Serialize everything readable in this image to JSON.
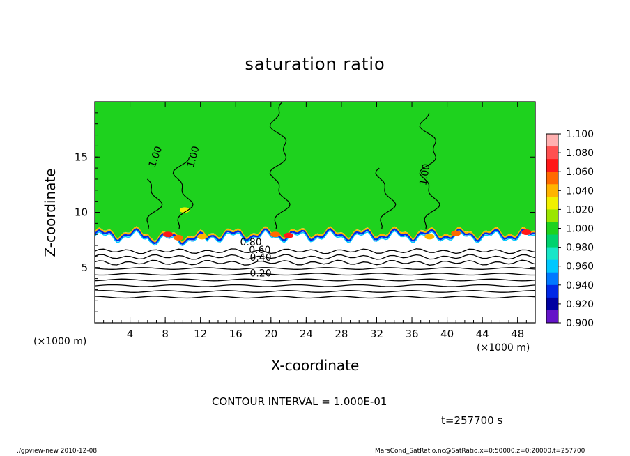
{
  "chart_data": {
    "type": "heatmap",
    "title": "saturation ratio",
    "xlabel": "X-coordinate",
    "ylabel": "Z-coordinate",
    "x_unit": "(×1000 m)",
    "z_unit": "(×1000 m)",
    "xlim": [
      0,
      50
    ],
    "ylim": [
      0,
      20
    ],
    "x_ticks": [
      "4",
      "8",
      "12",
      "16",
      "20",
      "24",
      "28",
      "32",
      "36",
      "40",
      "44",
      "48"
    ],
    "y_ticks": [
      "5",
      "10",
      "15"
    ],
    "contour_interval": "CONTOUR INTERVAL = 1.000E-01",
    "contour_labels": [
      "1.00",
      "1.00",
      "1.00",
      "0.80",
      "0.60",
      "0.40",
      "0.20"
    ],
    "colorbar": {
      "labels": [
        "1.100",
        "1.080",
        "1.060",
        "1.040",
        "1.020",
        "1.000",
        "0.980",
        "0.960",
        "0.940",
        "0.920",
        "0.900"
      ],
      "colors": [
        "#ffb0b0",
        "#ff5050",
        "#ff1818",
        "#ff6a00",
        "#ffb400",
        "#f0f000",
        "#9be600",
        "#1ed21e",
        "#00d26e",
        "#18e6c8",
        "#00c8ff",
        "#0078ff",
        "#0028e6",
        "#0000a0",
        "#6414c8"
      ],
      "range": [
        0.9,
        1.1
      ]
    },
    "field": {
      "background_value": 1.0,
      "cloud_base_z": 8.2,
      "subsaturated_layer_top_z": 7.0,
      "contour_levels_below": [
        0.9,
        0.8,
        0.7,
        0.6,
        0.5,
        0.4,
        0.3,
        0.2,
        0.1
      ]
    }
  },
  "time_label": "t=257700 s",
  "footer": {
    "left": "./gpview-new   2010-12-08",
    "right": "MarsCond_SatRatio.nc@SatRatio,x=0:50000,z=0:20000,t=257700"
  }
}
